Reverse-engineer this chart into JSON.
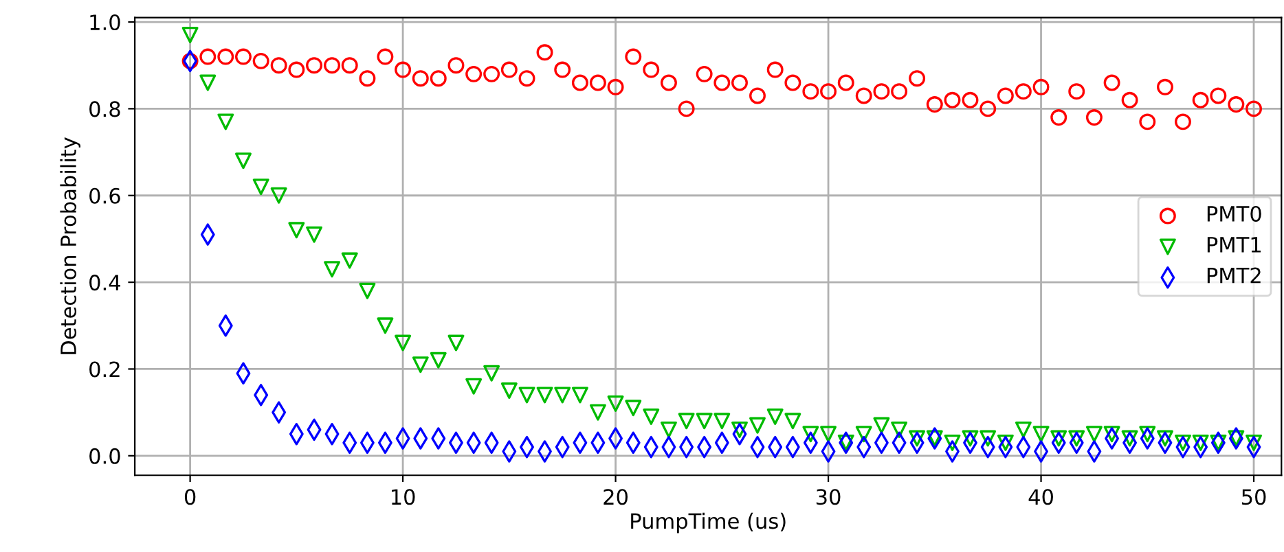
{
  "chart_data": {
    "type": "scatter",
    "xlabel": "PumpTime (us)",
    "ylabel": "Detection Probability",
    "x": [
      0,
      0.83,
      1.67,
      2.5,
      3.33,
      4.17,
      5,
      5.83,
      6.67,
      7.5,
      8.33,
      9.17,
      10,
      10.83,
      11.67,
      12.5,
      13.33,
      14.17,
      15,
      15.83,
      16.67,
      17.5,
      18.33,
      19.17,
      20,
      20.83,
      21.67,
      22.5,
      23.33,
      24.17,
      25,
      25.83,
      26.67,
      27.5,
      28.33,
      29.17,
      30,
      30.83,
      31.67,
      32.5,
      33.33,
      34.17,
      35,
      35.83,
      36.67,
      37.5,
      38.33,
      39.17,
      40,
      40.83,
      41.67,
      42.5,
      43.33,
      44.17,
      45,
      45.83,
      46.67,
      47.5,
      48.33,
      49.17,
      50
    ],
    "series": [
      {
        "name": "PMT0",
        "color": "#ff0000",
        "marker": "circle",
        "values": [
          0.91,
          0.92,
          0.92,
          0.92,
          0.91,
          0.9,
          0.89,
          0.9,
          0.9,
          0.9,
          0.87,
          0.92,
          0.89,
          0.87,
          0.87,
          0.9,
          0.88,
          0.88,
          0.89,
          0.87,
          0.93,
          0.89,
          0.86,
          0.86,
          0.85,
          0.92,
          0.89,
          0.86,
          0.8,
          0.88,
          0.86,
          0.86,
          0.83,
          0.89,
          0.86,
          0.84,
          0.84,
          0.86,
          0.83,
          0.84,
          0.84,
          0.87,
          0.81,
          0.82,
          0.82,
          0.8,
          0.83,
          0.84,
          0.85,
          0.78,
          0.84,
          0.78,
          0.86,
          0.82,
          0.77,
          0.85,
          0.77,
          0.82,
          0.83,
          0.81,
          0.8
        ]
      },
      {
        "name": "PMT1",
        "color": "#00bb00",
        "marker": "triangle",
        "values": [
          0.97,
          0.86,
          0.77,
          0.68,
          0.62,
          0.6,
          0.52,
          0.51,
          0.43,
          0.45,
          0.38,
          0.3,
          0.26,
          0.21,
          0.22,
          0.26,
          0.16,
          0.19,
          0.15,
          0.14,
          0.14,
          0.14,
          0.14,
          0.1,
          0.12,
          0.11,
          0.09,
          0.06,
          0.08,
          0.08,
          0.08,
          0.06,
          0.07,
          0.09,
          0.08,
          0.05,
          0.05,
          0.03,
          0.05,
          0.07,
          0.06,
          0.04,
          0.04,
          0.03,
          0.04,
          0.04,
          0.03,
          0.06,
          0.05,
          0.04,
          0.04,
          0.05,
          0.05,
          0.04,
          0.05,
          0.04,
          0.03,
          0.03,
          0.03,
          0.04,
          0.03
        ]
      },
      {
        "name": "PMT2",
        "color": "#0000ff",
        "marker": "diamond",
        "values": [
          0.91,
          0.51,
          0.3,
          0.19,
          0.14,
          0.1,
          0.05,
          0.06,
          0.05,
          0.03,
          0.03,
          0.03,
          0.04,
          0.04,
          0.04,
          0.03,
          0.03,
          0.03,
          0.01,
          0.02,
          0.01,
          0.02,
          0.03,
          0.03,
          0.04,
          0.03,
          0.02,
          0.02,
          0.02,
          0.02,
          0.03,
          0.05,
          0.02,
          0.02,
          0.02,
          0.03,
          0.01,
          0.03,
          0.02,
          0.03,
          0.03,
          0.03,
          0.04,
          0.01,
          0.03,
          0.02,
          0.02,
          0.02,
          0.01,
          0.03,
          0.03,
          0.01,
          0.04,
          0.03,
          0.04,
          0.03,
          0.02,
          0.02,
          0.03,
          0.04,
          0.02
        ]
      }
    ],
    "xlim": [
      -2.6,
      51.3
    ],
    "ylim": [
      -0.045,
      1.01
    ],
    "xticks": [
      0,
      10,
      20,
      30,
      40,
      50
    ],
    "yticks": [
      {
        "value": 0,
        "label": "0.0"
      },
      {
        "value": 0.2,
        "label": "0.2"
      },
      {
        "value": 0.4,
        "label": "0.4"
      },
      {
        "value": 0.6,
        "label": "0.6"
      },
      {
        "value": 0.8,
        "label": "0.8"
      },
      {
        "value": 1,
        "label": "1.0"
      }
    ],
    "grid": true,
    "legend": "center right"
  }
}
